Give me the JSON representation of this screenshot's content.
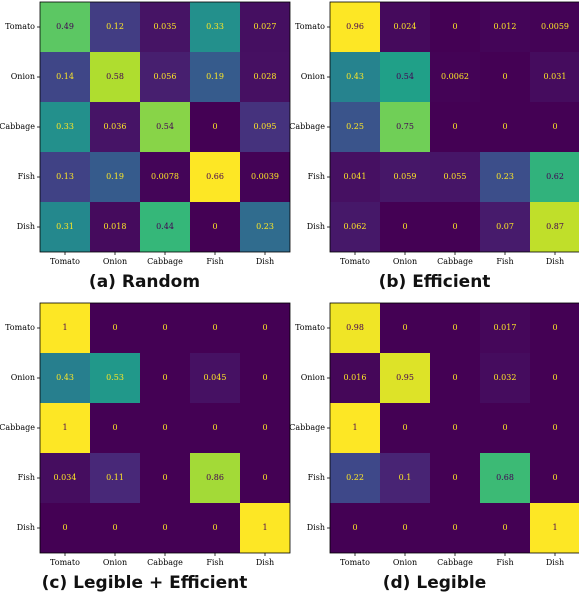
{
  "chart_data": [
    {
      "type": "heatmap",
      "caption": "(a) Random",
      "rows": [
        "Tomato",
        "Onion",
        "Cabbage",
        "Fish",
        "Dish"
      ],
      "cols": [
        "Tomato",
        "Onion",
        "Cabbage",
        "Fish",
        "Dish"
      ],
      "values": [
        [
          0.49,
          0.12,
          0.035,
          0.33,
          0.027
        ],
        [
          0.14,
          0.58,
          0.056,
          0.19,
          0.028
        ],
        [
          0.33,
          0.036,
          0.54,
          0,
          0.095
        ],
        [
          0.13,
          0.19,
          0.0078,
          0.66,
          0.0039
        ],
        [
          0.31,
          0.018,
          0.44,
          0,
          0.23
        ]
      ],
      "labels": [
        [
          "0.49",
          "0.12",
          "0.035",
          "0.33",
          "0.027"
        ],
        [
          "0.14",
          "0.58",
          "0.056",
          "0.19",
          "0.028"
        ],
        [
          "0.33",
          "0.036",
          "0.54",
          "0",
          "0.095"
        ],
        [
          "0.13",
          "0.19",
          "0.0078",
          "0.66",
          "0.0039"
        ],
        [
          "0.31",
          "0.018",
          "0.44",
          "0",
          "0.23"
        ]
      ]
    },
    {
      "type": "heatmap",
      "caption": "(b) Efficient",
      "rows": [
        "Tomato",
        "Onion",
        "Cabbage",
        "Fish",
        "Dish"
      ],
      "cols": [
        "Tomato",
        "Onion",
        "Cabbage",
        "Fish",
        "Dish"
      ],
      "values": [
        [
          0.96,
          0.024,
          0,
          0.012,
          0.0059
        ],
        [
          0.43,
          0.54,
          0.0062,
          0,
          0.031
        ],
        [
          0.25,
          0.75,
          0,
          0,
          0
        ],
        [
          0.041,
          0.059,
          0.055,
          0.23,
          0.62
        ],
        [
          0.062,
          0,
          0,
          0.07,
          0.87
        ]
      ],
      "labels": [
        [
          "0.96",
          "0.024",
          "0",
          "0.012",
          "0.0059"
        ],
        [
          "0.43",
          "0.54",
          "0.0062",
          "0",
          "0.031"
        ],
        [
          "0.25",
          "0.75",
          "0",
          "0",
          "0"
        ],
        [
          "0.041",
          "0.059",
          "0.055",
          "0.23",
          "0.62"
        ],
        [
          "0.062",
          "0",
          "0",
          "0.07",
          "0.87"
        ]
      ]
    },
    {
      "type": "heatmap",
      "caption": "(c) Legible + Efficient",
      "rows": [
        "Tomato",
        "Onion",
        "Cabbage",
        "Fish",
        "Dish"
      ],
      "cols": [
        "Tomato",
        "Onion",
        "Cabbage",
        "Fish",
        "Dish"
      ],
      "values": [
        [
          1,
          0,
          0,
          0,
          0
        ],
        [
          0.43,
          0.53,
          0,
          0.045,
          0
        ],
        [
          1,
          0,
          0,
          0,
          0
        ],
        [
          0.034,
          0.11,
          0,
          0.86,
          0
        ],
        [
          0,
          0,
          0,
          0,
          1
        ]
      ],
      "labels": [
        [
          "1",
          "0",
          "0",
          "0",
          "0"
        ],
        [
          "0.43",
          "0.53",
          "0",
          "0.045",
          "0"
        ],
        [
          "1",
          "0",
          "0",
          "0",
          "0"
        ],
        [
          "0.034",
          "0.11",
          "0",
          "0.86",
          "0"
        ],
        [
          "0",
          "0",
          "0",
          "0",
          "1"
        ]
      ]
    },
    {
      "type": "heatmap",
      "caption": "(d) Legible",
      "rows": [
        "Tomato",
        "Onion",
        "Cabbage",
        "Fish",
        "Dish"
      ],
      "cols": [
        "Tomato",
        "Onion",
        "Cabbage",
        "Fish",
        "Dish"
      ],
      "values": [
        [
          0.98,
          0,
          0,
          0.017,
          0
        ],
        [
          0.016,
          0.95,
          0,
          0.032,
          0
        ],
        [
          1,
          0,
          0,
          0,
          0
        ],
        [
          0.22,
          0.1,
          0,
          0.68,
          0
        ],
        [
          0,
          0,
          0,
          0,
          1
        ]
      ],
      "labels": [
        [
          "0.98",
          "0",
          "0",
          "0.017",
          "0"
        ],
        [
          "0.016",
          "0.95",
          "0",
          "0.032",
          "0"
        ],
        [
          "1",
          "0",
          "0",
          "0",
          "0"
        ],
        [
          "0.22",
          "0.1",
          "0",
          "0.68",
          "0"
        ],
        [
          "0",
          "0",
          "0",
          "0",
          "1"
        ]
      ]
    }
  ],
  "colormap": "viridis",
  "colormap_stops": [
    "#440154",
    "#482878",
    "#3e4989",
    "#31688e",
    "#26828e",
    "#1f9e89",
    "#35b779",
    "#6ece58",
    "#b5de2b",
    "#fde725"
  ],
  "label_colors": {
    "on_dark": "#fde725",
    "on_bright": "#440154"
  }
}
